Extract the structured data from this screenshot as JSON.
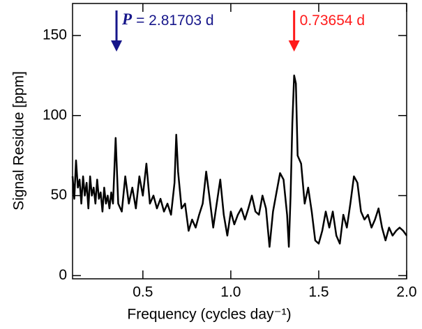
{
  "chart_data": {
    "type": "line",
    "xlabel": "Frequency (cycles day⁻¹)",
    "ylabel": "Signal Residue [ppm]",
    "xlim": [
      0.1,
      2.0
    ],
    "ylim": [
      -2,
      170
    ],
    "xticks": [
      0.5,
      {
        "value": 1,
        "label": "1.0"
      },
      1.5,
      {
        "value": 2,
        "label": "2.0"
      }
    ],
    "yticks": [
      0,
      50,
      100,
      150
    ],
    "series": [
      {
        "color": "#000000",
        "x": [
          0.1,
          0.11,
          0.12,
          0.13,
          0.14,
          0.15,
          0.16,
          0.17,
          0.18,
          0.19,
          0.2,
          0.21,
          0.22,
          0.23,
          0.24,
          0.25,
          0.26,
          0.27,
          0.28,
          0.29,
          0.3,
          0.31,
          0.32,
          0.33,
          0.345,
          0.36,
          0.38,
          0.4,
          0.42,
          0.44,
          0.46,
          0.48,
          0.5,
          0.52,
          0.54,
          0.56,
          0.58,
          0.6,
          0.62,
          0.64,
          0.66,
          0.68,
          0.69,
          0.7,
          0.72,
          0.74,
          0.76,
          0.78,
          0.8,
          0.82,
          0.84,
          0.86,
          0.88,
          0.9,
          0.92,
          0.94,
          0.96,
          0.98,
          1.0,
          1.02,
          1.04,
          1.06,
          1.08,
          1.1,
          1.12,
          1.14,
          1.16,
          1.18,
          1.2,
          1.22,
          1.24,
          1.26,
          1.28,
          1.3,
          1.32,
          1.33,
          1.34,
          1.35,
          1.36,
          1.37,
          1.38,
          1.4,
          1.42,
          1.44,
          1.46,
          1.48,
          1.5,
          1.52,
          1.54,
          1.56,
          1.58,
          1.6,
          1.62,
          1.64,
          1.66,
          1.68,
          1.7,
          1.72,
          1.74,
          1.76,
          1.78,
          1.8,
          1.82,
          1.84,
          1.86,
          1.88,
          1.9,
          1.92,
          1.94,
          1.96,
          1.98,
          2.0
        ],
        "values": [
          62,
          48,
          72,
          55,
          60,
          45,
          62,
          50,
          58,
          42,
          62,
          50,
          55,
          45,
          60,
          48,
          52,
          40,
          55,
          45,
          50,
          42,
          52,
          45,
          86,
          45,
          40,
          62,
          45,
          55,
          42,
          62,
          50,
          70,
          45,
          50,
          42,
          48,
          40,
          45,
          38,
          58,
          88,
          65,
          42,
          45,
          28,
          35,
          30,
          38,
          45,
          65,
          48,
          30,
          45,
          60,
          38,
          25,
          40,
          32,
          38,
          42,
          35,
          42,
          50,
          40,
          38,
          50,
          42,
          18,
          40,
          52,
          64,
          60,
          38,
          18,
          50,
          95,
          125,
          120,
          75,
          70,
          45,
          55,
          40,
          22,
          20,
          28,
          40,
          30,
          40,
          25,
          20,
          38,
          30,
          45,
          62,
          58,
          40,
          35,
          38,
          30,
          35,
          42,
          30,
          22,
          30,
          25,
          28,
          30,
          28,
          25
        ]
      }
    ],
    "annotations": [
      {
        "x": 0.35,
        "symbol": "P",
        "text": "= 2.81703 d",
        "color": "#16168a"
      },
      {
        "x": 1.36,
        "text": "0.73654 d",
        "color": "#ff1a1a"
      }
    ]
  }
}
